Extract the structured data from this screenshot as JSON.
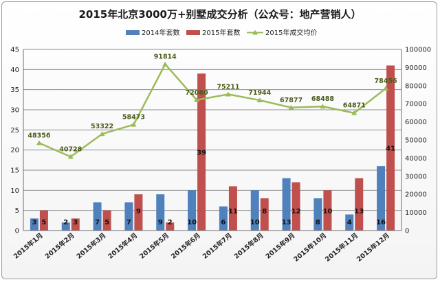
{
  "chart_data": {
    "type": "bar",
    "title": "2015年北京3000万+别墅成交分析（公众号：地产营销人）",
    "categories": [
      "2015年1月",
      "2015年2月",
      "2015年3月",
      "2015年4月",
      "2015年5月",
      "2015年6月",
      "2015年7月",
      "2015年8月",
      "2015年9月",
      "2015年10月",
      "2015年11月",
      "2015年12月"
    ],
    "series": [
      {
        "name": "2014年套数",
        "type": "bar",
        "axis": "left",
        "color": "#4F81BD",
        "values": [
          3,
          2,
          7,
          7,
          9,
          10,
          6,
          10,
          13,
          8,
          4,
          16
        ]
      },
      {
        "name": "2015年套数",
        "type": "bar",
        "axis": "left",
        "color": "#C0504D",
        "values": [
          5,
          3,
          5,
          9,
          2,
          39,
          11,
          8,
          12,
          10,
          13,
          41
        ]
      },
      {
        "name": "2015年成交均价",
        "type": "line",
        "axis": "right",
        "color": "#9BBB59",
        "values": [
          48356,
          40728,
          53322,
          58473,
          91814,
          72060,
          75211,
          71944,
          67877,
          68488,
          64871,
          78456
        ]
      }
    ],
    "ylim_left": [
      0,
      45
    ],
    "yticks_left": [
      "0",
      "5",
      "10",
      "15",
      "20",
      "25",
      "30",
      "35",
      "40",
      "45"
    ],
    "ylim_right": [
      0,
      100000
    ],
    "yticks_right": [
      "0",
      "10000",
      "20000",
      "30000",
      "40000",
      "50000",
      "60000",
      "70000",
      "80000",
      "90000",
      "100000"
    ],
    "grid": true,
    "legend_position": "top"
  }
}
